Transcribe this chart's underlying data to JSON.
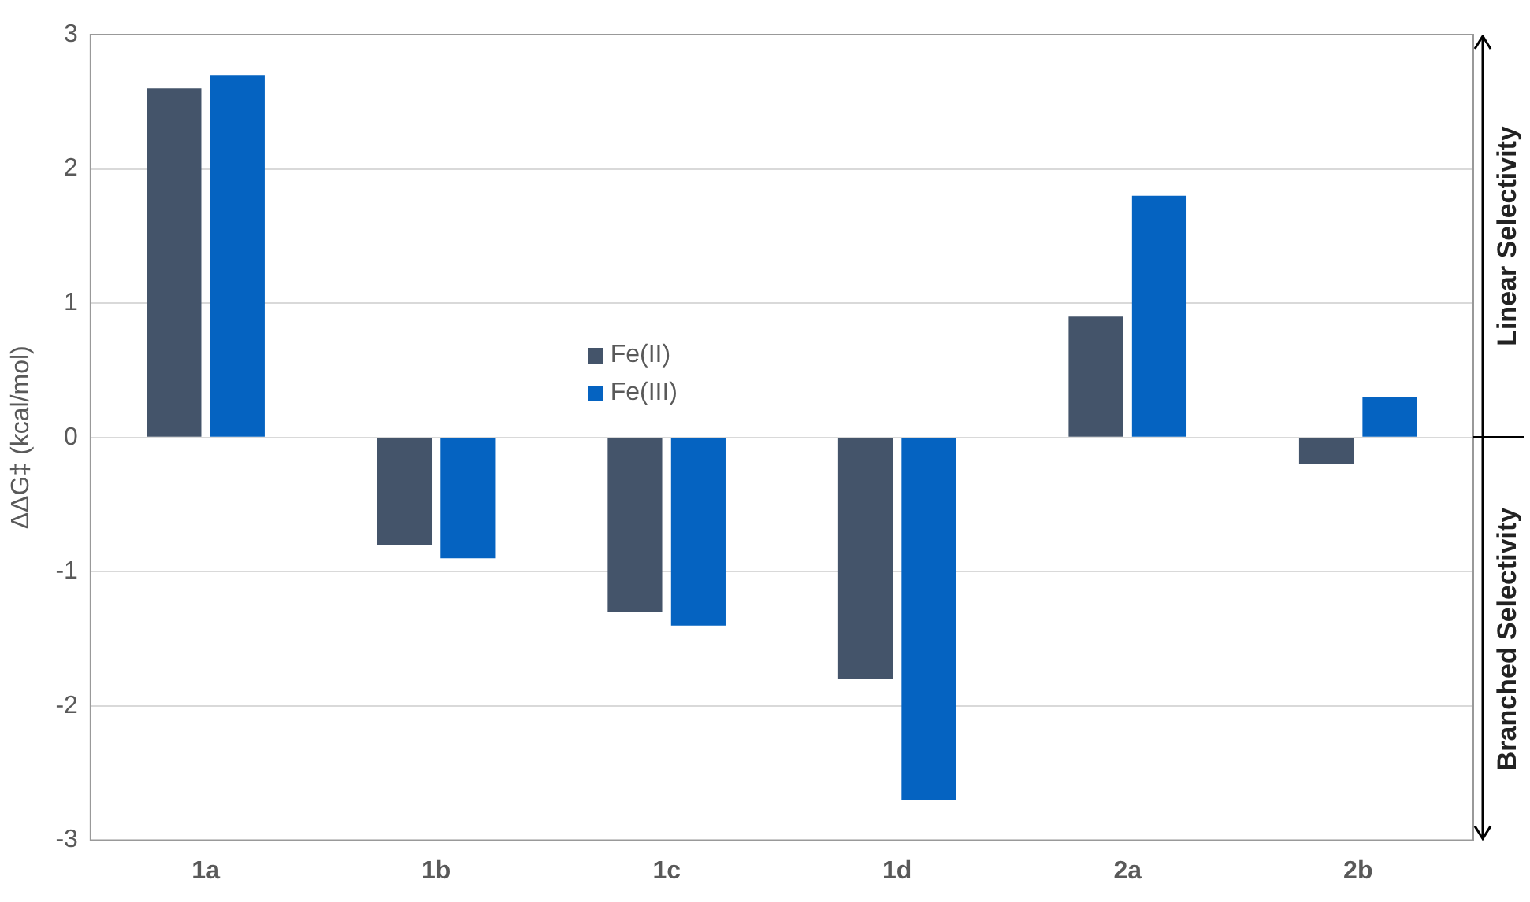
{
  "chart_data": {
    "type": "bar",
    "ylabel": "ΔΔG‡ (kcal/mol)",
    "categories": [
      "1a",
      "1b",
      "1c",
      "1d",
      "2a",
      "2b"
    ],
    "series": [
      {
        "name": "Fe(II)",
        "color": "#44546a",
        "values": [
          2.6,
          -0.8,
          -1.3,
          -1.8,
          0.9,
          -0.2
        ]
      },
      {
        "name": "Fe(III)",
        "color": "#0563c1",
        "values": [
          2.7,
          -0.9,
          -1.4,
          -2.7,
          1.8,
          0.3
        ]
      }
    ],
    "ylim": [
      -3,
      3
    ],
    "yticks": [
      -3,
      -2,
      -1,
      0,
      1,
      2,
      3
    ],
    "grid": "y",
    "legend": "center",
    "annotations": [
      "Linear Selectivity",
      "Branched Selectivity"
    ]
  }
}
